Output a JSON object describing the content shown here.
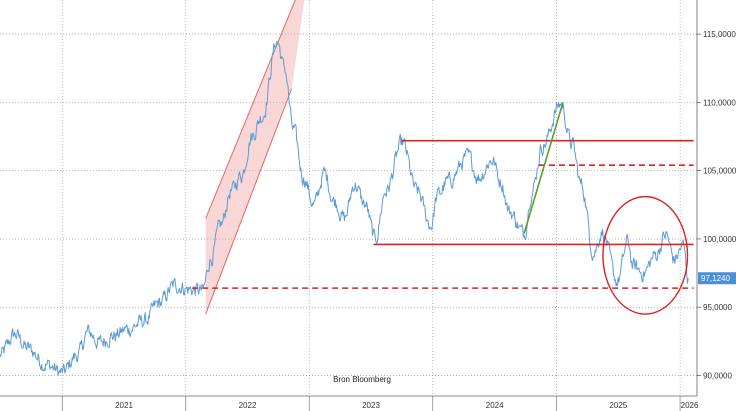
{
  "chart_data": {
    "type": "line",
    "title": "",
    "xlabel": "",
    "ylabel": "",
    "source": "Bron Bloomberg",
    "ylim": [
      88.5,
      117.5
    ],
    "xlim": [
      "2020-07-01",
      "2026-02-20"
    ],
    "y_ticks": [
      "90,0000",
      "95,0000",
      "100,0000",
      "105,0000",
      "110,0000",
      "115,0000"
    ],
    "x_tick_labels": [
      "2021",
      "2022",
      "2023",
      "2024",
      "2025",
      "2026"
    ],
    "grid": true,
    "line_color": "#5b9bd5",
    "last_value": {
      "value": 97.124,
      "label": "97,1240",
      "color": "#4a90d9"
    },
    "series": [
      {
        "points": [
          [
            "2020-07-01",
            91.5
          ],
          [
            "2020-08-15",
            93.0
          ],
          [
            "2020-09-20",
            92.0
          ],
          [
            "2020-11-15",
            90.8
          ],
          [
            "2021-01-01",
            90.2
          ],
          [
            "2021-02-15",
            91.5
          ],
          [
            "2021-03-20",
            93.2
          ],
          [
            "2021-04-20",
            92.4
          ],
          [
            "2021-06-01",
            92.9
          ],
          [
            "2021-07-15",
            93.4
          ],
          [
            "2021-09-01",
            94.0
          ],
          [
            "2021-10-15",
            95.3
          ],
          [
            "2021-11-30",
            96.6
          ],
          [
            "2022-01-15",
            96.3
          ],
          [
            "2022-02-20",
            96.2
          ],
          [
            "2022-03-15",
            98.5
          ],
          [
            "2022-04-15",
            101.0
          ],
          [
            "2022-05-15",
            103.5
          ],
          [
            "2022-06-15",
            104.7
          ],
          [
            "2022-07-15",
            107.5
          ],
          [
            "2022-08-15",
            109.0
          ],
          [
            "2022-09-28",
            114.5
          ],
          [
            "2022-10-20",
            112.5
          ],
          [
            "2022-11-15",
            108.0
          ],
          [
            "2022-12-15",
            104.5
          ],
          [
            "2023-01-15",
            102.5
          ],
          [
            "2023-02-15",
            104.8
          ],
          [
            "2023-03-15",
            102.8
          ],
          [
            "2023-04-15",
            101.5
          ],
          [
            "2023-05-15",
            104.0
          ],
          [
            "2023-06-15",
            102.5
          ],
          [
            "2023-07-15",
            100.0
          ],
          [
            "2023-08-15",
            103.5
          ],
          [
            "2023-10-03",
            107.0
          ],
          [
            "2023-11-15",
            103.5
          ],
          [
            "2023-12-27",
            101.0
          ],
          [
            "2024-01-15",
            103.2
          ],
          [
            "2024-02-15",
            104.2
          ],
          [
            "2024-04-15",
            106.0
          ],
          [
            "2024-05-15",
            104.5
          ],
          [
            "2024-06-25",
            105.8
          ],
          [
            "2024-07-20",
            104.2
          ],
          [
            "2024-08-15",
            102.0
          ],
          [
            "2024-09-27",
            100.4
          ],
          [
            "2024-10-20",
            103.5
          ],
          [
            "2024-11-20",
            106.8
          ],
          [
            "2025-01-13",
            109.9
          ],
          [
            "2025-02-15",
            107.0
          ],
          [
            "2025-03-15",
            104.0
          ],
          [
            "2025-04-21",
            99.0
          ],
          [
            "2025-05-15",
            100.5
          ],
          [
            "2025-06-30",
            96.9
          ],
          [
            "2025-07-31",
            99.8
          ],
          [
            "2025-08-15",
            98.0
          ],
          [
            "2025-09-15",
            97.5
          ],
          [
            "2025-10-20",
            98.8
          ],
          [
            "2025-11-20",
            100.3
          ],
          [
            "2025-12-15",
            98.5
          ],
          [
            "2026-01-10",
            99.5
          ],
          [
            "2026-01-25",
            97.124
          ]
        ]
      }
    ],
    "annotations": [
      {
        "type": "channel",
        "color": "#e06666",
        "fill": "rgba(242,150,150,0.38)",
        "lower": [
          [
            "2022-03-01",
            94.5
          ],
          [
            "2022-11-10",
            111.0
          ]
        ],
        "upper": [
          [
            "2022-03-01",
            101.5
          ],
          [
            "2023-01-01",
            120.0
          ]
        ]
      },
      {
        "type": "hline",
        "y": 107.2,
        "style": "solid",
        "color": "#e02020",
        "from": "2023-10-01",
        "to": "2026-02-10"
      },
      {
        "type": "hline",
        "y": 105.4,
        "style": "dashed",
        "color": "#e02020",
        "from": "2024-11-10",
        "to": "2026-02-10"
      },
      {
        "type": "hline",
        "y": 99.6,
        "style": "solid",
        "color": "#e02020",
        "from": "2023-07-10",
        "to": "2026-02-10"
      },
      {
        "type": "hline",
        "y": 96.4,
        "style": "dashed",
        "color": "#e02020",
        "from": "2022-01-20",
        "to": "2026-02-10"
      },
      {
        "type": "trendline",
        "color": "#5a9e2f",
        "from": [
          "2024-09-27",
          100.4
        ],
        "to": [
          "2025-01-20",
          110.0
        ]
      },
      {
        "type": "ellipse",
        "color": "#e02020",
        "center": [
          "2025-09-20",
          98.8
        ],
        "rx_days": 125,
        "ry": 4.3
      }
    ]
  }
}
